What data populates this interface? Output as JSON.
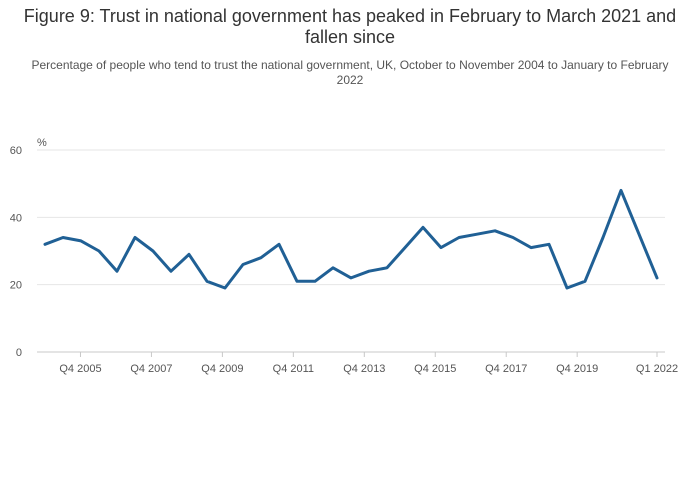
{
  "chart_data": {
    "type": "line",
    "title": "Figure 9: Trust in national government has peaked in February to March 2021 and fallen since",
    "subtitle": "Percentage of people who tend to trust the national government, UK, October to November 2004 to January to February 2022",
    "ylabel": "%",
    "xlabel": "",
    "ylim": [
      0,
      60
    ],
    "yticks": [
      0,
      20,
      40,
      60
    ],
    "xtick_labels": [
      "Q4 2005",
      "Q4 2007",
      "Q4 2009",
      "Q4 2011",
      "Q4 2013",
      "Q4 2015",
      "Q4 2017",
      "Q4 2019",
      "Q1 2022"
    ],
    "grid": true,
    "color": "#206095",
    "series": [
      {
        "values": [
          32,
          34,
          33,
          30,
          24,
          34,
          30,
          24,
          29,
          21,
          19,
          26,
          28,
          32,
          21,
          21,
          25,
          22,
          24,
          25,
          31,
          37,
          31,
          34,
          35,
          36,
          34,
          31,
          32,
          19,
          21,
          34,
          48,
          35,
          22
        ]
      }
    ]
  }
}
